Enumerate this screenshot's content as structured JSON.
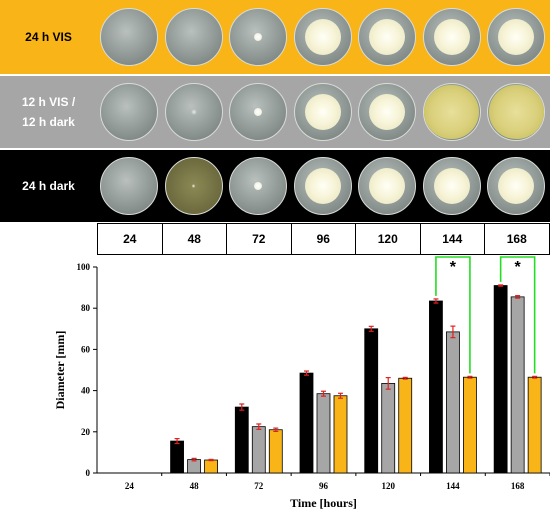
{
  "plates": {
    "rows": [
      {
        "label": "24 h VIS",
        "bg_color": "#f9b517",
        "label_color": "#000000",
        "dishes": [
          {
            "hour": 24,
            "colony": "none"
          },
          {
            "hour": 48,
            "colony": "none"
          },
          {
            "hour": 72,
            "colony": "small white"
          },
          {
            "hour": 96,
            "colony": "white"
          },
          {
            "hour": 120,
            "colony": "white"
          },
          {
            "hour": 144,
            "colony": "white"
          },
          {
            "hour": 168,
            "colony": "white"
          }
        ]
      },
      {
        "label": "12 h VIS /\n12 h dark",
        "bg_color": "#a6a6a6",
        "label_color": "#ffffff",
        "dishes": [
          {
            "hour": 24,
            "colony": "none"
          },
          {
            "hour": 48,
            "colony": "faint"
          },
          {
            "hour": 72,
            "colony": "small white"
          },
          {
            "hour": 96,
            "colony": "white"
          },
          {
            "hour": 120,
            "colony": "white"
          },
          {
            "hour": 144,
            "colony": "yellow full"
          },
          {
            "hour": 168,
            "colony": "yellow full"
          }
        ]
      },
      {
        "label": "24 h dark",
        "bg_color": "#000000",
        "label_color": "#ffffff",
        "dishes": [
          {
            "hour": 24,
            "colony": "none"
          },
          {
            "hour": 48,
            "colony": "dark faint"
          },
          {
            "hour": 72,
            "colony": "small white"
          },
          {
            "hour": 96,
            "colony": "white"
          },
          {
            "hour": 120,
            "colony": "white"
          },
          {
            "hour": 144,
            "colony": "white"
          },
          {
            "hour": 168,
            "colony": "white"
          }
        ]
      }
    ],
    "time_labels": [
      "24",
      "48",
      "72",
      "96",
      "120",
      "144",
      "168"
    ]
  },
  "chart_data": {
    "type": "bar",
    "categories": [
      "24",
      "48",
      "72",
      "96",
      "120",
      "144",
      "168"
    ],
    "xlabel": "Time [hours]",
    "ylabel": "Diameter [mm]",
    "ylim": [
      0,
      100
    ],
    "yticks": [
      "0",
      "20",
      "40",
      "60",
      "80",
      "100"
    ],
    "grid": false,
    "series": [
      {
        "color": "#000000",
        "values": [
          0,
          15.5,
          32,
          48.5,
          70,
          83.5,
          91
        ],
        "errors": [
          0,
          1.2,
          1.5,
          1.0,
          1.2,
          1.0,
          0.3
        ]
      },
      {
        "color": "#a6a6a6",
        "values": [
          0,
          6.5,
          22.5,
          38.5,
          43.5,
          68.5,
          85.5
        ],
        "errors": [
          0,
          0.6,
          1.3,
          1.2,
          2.8,
          2.8,
          0.6
        ]
      },
      {
        "color": "#f9b517",
        "values": [
          0,
          6.3,
          21,
          37.5,
          46,
          46.5,
          46.5
        ],
        "errors": [
          0,
          0.3,
          0.8,
          1.2,
          0.4,
          0.4,
          0.4
        ]
      }
    ],
    "significance": [
      {
        "category": "144",
        "label": "*",
        "bracket_color": "#22dd22"
      },
      {
        "category": "168",
        "label": "*",
        "bracket_color": "#22dd22"
      }
    ]
  }
}
